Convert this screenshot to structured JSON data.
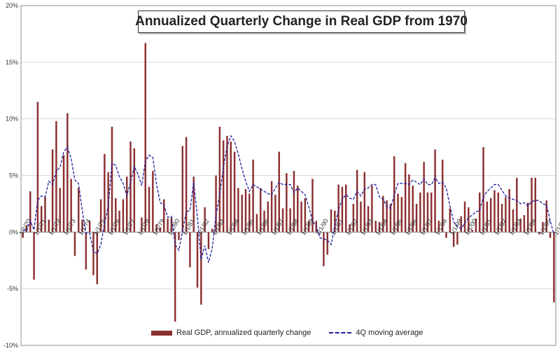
{
  "chart_data": {
    "type": "bar",
    "title": "Annualized Quarterly Change in Real GDP from 1970",
    "xlabel": "",
    "ylabel": "",
    "ylim": [
      -10,
      20
    ],
    "y_ticks": [
      "-10%",
      "-5%",
      "0%",
      "5%",
      "10%",
      "15%",
      "20%"
    ],
    "x_start": "1970Q1",
    "x_ticks": [
      "1/1/70",
      "1/1/71",
      "1/1/72",
      "1/1/73",
      "1/1/74",
      "1/1/75",
      "1/1/76",
      "1/1/77",
      "1/1/78",
      "1/1/79",
      "1/1/80",
      "1/1/81",
      "1/1/82",
      "1/1/83",
      "1/1/84",
      "1/1/85",
      "1/1/86",
      "1/1/87",
      "1/1/88",
      "1/1/89",
      "1/1/90",
      "1/1/91",
      "1/1/92",
      "1/1/93",
      "1/1/94",
      "1/1/95",
      "1/1/96",
      "1/1/97",
      "1/1/98",
      "1/1/99",
      "1/1/00",
      "1/1/01",
      "1/1/02",
      "1/1/03",
      "1/1/04",
      "1/1/05",
      "1/1/06",
      "1/1/07",
      "1/1/08"
    ],
    "series": [
      {
        "name": "Real GDP, annualized quarterly change",
        "kind": "bar",
        "color": "#8b2f2f",
        "values": [
          -0.5,
          0.6,
          3.6,
          -4.2,
          11.5,
          2.3,
          3.1,
          1.1,
          7.3,
          9.8,
          3.9,
          6.8,
          10.5,
          4.7,
          -2.1,
          3.9,
          1.1,
          -3.3,
          1.0,
          -3.8,
          -4.6,
          2.9,
          6.9,
          5.3,
          9.3,
          3.0,
          1.9,
          2.9,
          4.9,
          8.0,
          7.4,
          0.0,
          1.3,
          16.7,
          4.0,
          5.4,
          0.7,
          0.4,
          2.9,
          1.2,
          1.3,
          -7.9,
          -0.7,
          7.6,
          8.4,
          -3.1,
          4.9,
          -4.9,
          -6.4,
          2.2,
          -1.5,
          0.3,
          5.0,
          9.3,
          8.1,
          8.5,
          8.0,
          7.1,
          3.9,
          3.3,
          3.8,
          3.4,
          6.4,
          1.6,
          3.9,
          1.9,
          2.7,
          4.5,
          3.3,
          7.1,
          2.1,
          5.2,
          2.1,
          5.4,
          4.1,
          2.7,
          3.0,
          1.0,
          4.7,
          1.0,
          0.0,
          -3.0,
          -2.0,
          2.0,
          1.9,
          4.2,
          4.0,
          4.2,
          0.7,
          2.5,
          5.5,
          2.7,
          5.3,
          2.3,
          4.1,
          1.0,
          0.9,
          3.2,
          2.8,
          2.5,
          6.7,
          3.4,
          3.1,
          6.1,
          5.1,
          4.1,
          2.5,
          3.5,
          6.2,
          3.5,
          3.5,
          7.3,
          1.0,
          6.4,
          -0.5,
          2.1,
          -1.3,
          -1.1,
          1.4,
          2.7,
          2.2,
          0.2,
          1.2,
          3.5,
          7.5,
          2.7,
          3.0,
          3.7,
          3.5,
          2.5,
          3.1,
          3.8,
          2.0,
          4.8,
          1.2,
          1.5,
          2.6,
          4.8,
          4.8,
          -0.2,
          0.9,
          2.8,
          -0.5,
          -6.2
        ]
      },
      {
        "name": "4Q moving average",
        "kind": "line",
        "color": "#1f1f9f",
        "values": [
          0.2,
          0.1,
          1.0,
          0.2,
          2.8,
          3.2,
          3.1,
          4.5,
          4.2,
          5.4,
          5.7,
          7.1,
          7.5,
          6.5,
          4.6,
          4.3,
          1.9,
          -0.1,
          -0.1,
          -1.7,
          -1.9,
          -1.1,
          0.8,
          2.3,
          6.1,
          5.9,
          4.9,
          4.3,
          3.2,
          4.4,
          5.8,
          5.1,
          4.1,
          6.3,
          6.8,
          6.6,
          4.2,
          2.6,
          2.4,
          1.3,
          1.4,
          -1.1,
          -1.6,
          0.1,
          1.8,
          1.9,
          4.4,
          1.3,
          -2.4,
          -1.2,
          -2.7,
          -1.4,
          1.5,
          3.3,
          5.7,
          7.6,
          8.5,
          8.0,
          6.9,
          5.6,
          4.5,
          3.6,
          4.2,
          4.0,
          3.8,
          3.6,
          3.4,
          3.3,
          3.9,
          4.4,
          4.2,
          4.2,
          4.2,
          3.5,
          3.9,
          3.6,
          3.3,
          2.2,
          1.0,
          0.5,
          -0.5,
          -0.6,
          -0.7,
          -1.1,
          0.5,
          2.0,
          2.9,
          3.3,
          3.0,
          2.9,
          3.6,
          3.2,
          3.8,
          3.9,
          4.2,
          4.2,
          3.1,
          2.9,
          2.3,
          2.1,
          3.3,
          4.3,
          4.3,
          4.3,
          4.2,
          4.6,
          4.4,
          4.2,
          4.7,
          4.2,
          4.2,
          4.8,
          4.3,
          4.4,
          3.9,
          2.3,
          0.9,
          0.5,
          0.3,
          0.8,
          1.3,
          1.5,
          1.8,
          1.9,
          3.1,
          3.6,
          3.9,
          4.2,
          4.2,
          3.7,
          3.2,
          3.0,
          2.9,
          2.8,
          2.5,
          2.6,
          2.3,
          2.7,
          2.8,
          2.8,
          2.5,
          2.4,
          1.0,
          -0.2
        ]
      }
    ],
    "legend": "bottom",
    "grid": true
  }
}
